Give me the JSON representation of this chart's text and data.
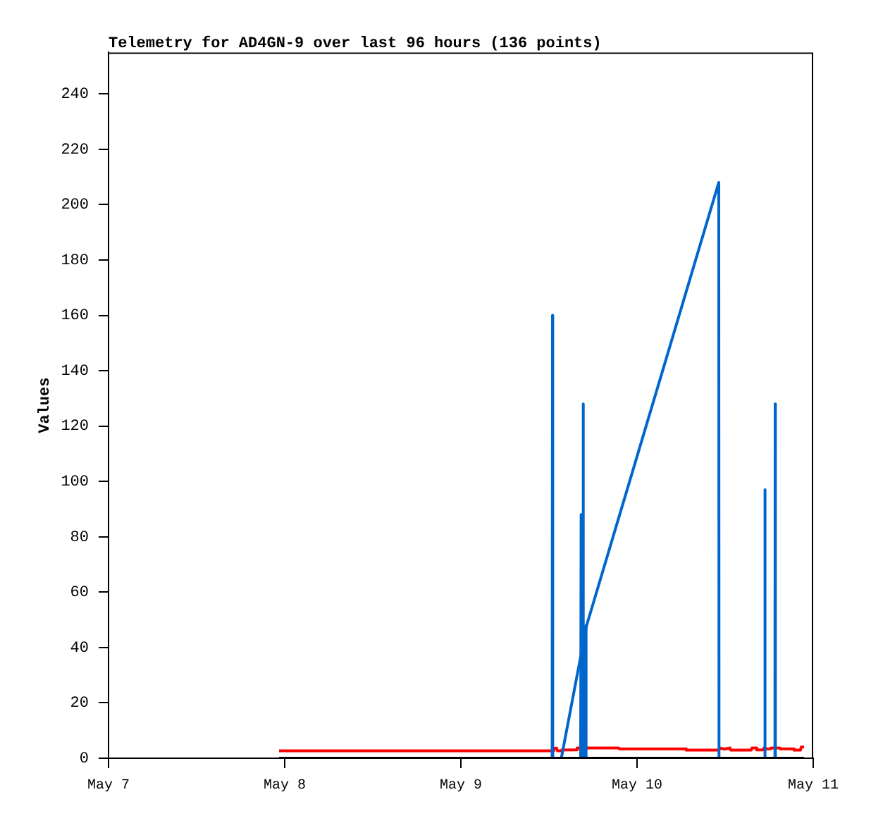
{
  "chart_data": {
    "type": "line",
    "title": "Telemetry for AD4GN-9 over last 96 hours (136 points)",
    "ylabel": "Values",
    "xlim": [
      "--05-07",
      "--05-11"
    ],
    "xticks": [
      {
        "value": "--05-07",
        "label": "May 7"
      },
      {
        "value": "--05-08",
        "label": "May 8"
      },
      {
        "value": "--05-09",
        "label": "May 9"
      },
      {
        "value": "--05-10",
        "label": "May 10"
      },
      {
        "value": "--05-11",
        "label": "May 11"
      }
    ],
    "ylim": [
      0,
      255
    ],
    "yticks": [
      0,
      20,
      40,
      60,
      80,
      100,
      120,
      140,
      160,
      180,
      200,
      220,
      240
    ],
    "grid": false,
    "marker": "none",
    "series": [
      {
        "color": "#000000",
        "x": [
          "--05-07T23:14",
          "--05-10T22:45"
        ],
        "values": [
          0,
          0
        ]
      },
      {
        "color": "#0066cc",
        "x": [
          "--05-09T12:26",
          "--05-09T12:29",
          "--05-09T12:31",
          "--05-09T13:41",
          "--05-09T17:08",
          "--05-10T11:08",
          "--05-10T11:10",
          "--05-10T17:23",
          "--05-10T17:25",
          "--05-10T17:27",
          "--05-10T18:47",
          "--05-10T18:49",
          "--05-10T18:51"
        ],
        "values": [
          0,
          160,
          0,
          0,
          48,
          208,
          0,
          0,
          97,
          0,
          0,
          128,
          0
        ]
      },
      {
        "color": "#0066cc",
        "x": [
          "--05-09T16:19",
          "--05-09T16:23",
          "--05-09T16:26",
          "--05-09T16:35",
          "--05-09T16:39",
          "--05-09T16:42",
          "--05-09T16:58",
          "--05-09T17:02",
          "--05-09T17:05"
        ],
        "values": [
          0,
          88,
          0,
          0,
          128,
          0,
          0,
          48,
          0
        ]
      },
      {
        "color": "#ff0000",
        "x": [
          "--05-07T23:14",
          "--05-09T12:29",
          "--05-09T12:40",
          "--05-09T13:03",
          "--05-09T13:09",
          "--05-09T13:38",
          "--05-09T13:44",
          "--05-09T15:45",
          "--05-09T15:50",
          "--05-09T21:30",
          "--05-09T21:36",
          "--05-10T06:37",
          "--05-10T06:43",
          "--05-10T11:08",
          "--05-10T11:14",
          "--05-10T11:54",
          "--05-10T12:40",
          "--05-10T12:46",
          "--05-10T15:33",
          "--05-10T15:39",
          "--05-10T16:13",
          "--05-10T16:19",
          "--05-10T17:11",
          "--05-10T17:17",
          "--05-10T17:28",
          "--05-10T18:09",
          "--05-10T18:14",
          "--05-10T19:24",
          "--05-10T19:29",
          "--05-10T21:19",
          "--05-10T21:24",
          "--05-10T22:16",
          "--05-10T22:22",
          "--05-10T22:45"
        ],
        "values": [
          2.7,
          2.7,
          3.6,
          3.6,
          2.7,
          2.7,
          3.0,
          3.0,
          3.7,
          3.7,
          3.4,
          3.4,
          2.9,
          2.9,
          3.7,
          3.3,
          3.7,
          2.9,
          2.9,
          3.7,
          3.7,
          3.0,
          3.0,
          3.7,
          3.4,
          3.4,
          3.7,
          3.7,
          3.4,
          3.4,
          2.9,
          2.9,
          4.1,
          4.1
        ]
      }
    ]
  }
}
